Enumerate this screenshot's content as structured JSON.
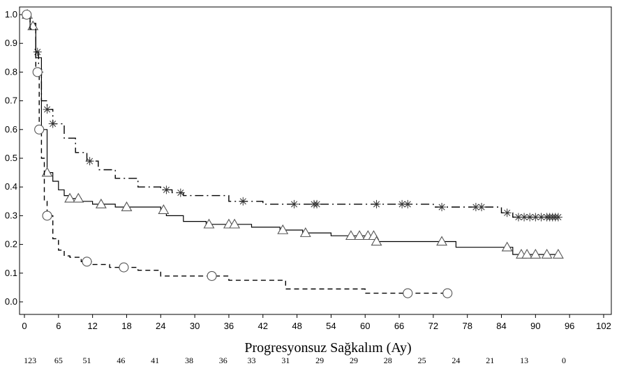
{
  "chart_data": {
    "type": "line",
    "subtype": "kaplan-meier-step",
    "title": "",
    "xlabel": "Progresyonsuz Sağkalım (Ay)",
    "ylabel": "",
    "xlim": [
      0,
      102
    ],
    "ylim": [
      0,
      1.0
    ],
    "x_ticks": [
      0,
      6,
      12,
      18,
      24,
      30,
      36,
      42,
      48,
      54,
      60,
      66,
      72,
      78,
      84,
      90,
      96,
      102
    ],
    "y_ticks": [
      "0.0",
      "0.1",
      "0.2",
      "0.3",
      "0.4",
      "0.5",
      "0.6",
      "0.7",
      "0.8",
      "0.9",
      "1.0"
    ],
    "grid": false,
    "legend": "none",
    "risk_table": {
      "x": [
        1,
        6,
        11,
        17,
        23,
        29,
        35,
        40,
        46,
        52,
        58,
        64,
        70,
        76,
        82,
        88,
        95
      ],
      "counts": [
        "123",
        "65",
        "51",
        "46",
        "41",
        "38",
        "36",
        "33",
        "31",
        "29",
        "29",
        "28",
        "25",
        "24",
        "21",
        "13",
        "0"
      ]
    },
    "series": [
      {
        "line_style": "dash-dot",
        "marker": "star",
        "color": "#000000",
        "x": [
          0,
          1,
          2,
          2.5,
          3,
          4,
          5,
          7,
          9,
          11,
          13,
          16,
          20,
          24,
          26,
          28,
          36,
          38,
          42,
          48,
          55,
          62,
          66,
          68,
          72,
          78,
          84,
          86,
          94
        ],
        "y": [
          1.0,
          0.97,
          0.87,
          0.8,
          0.7,
          0.67,
          0.62,
          0.57,
          0.52,
          0.49,
          0.46,
          0.43,
          0.4,
          0.39,
          0.38,
          0.37,
          0.35,
          0.35,
          0.34,
          0.34,
          0.34,
          0.34,
          0.34,
          0.34,
          0.33,
          0.33,
          0.31,
          0.295,
          0.295
        ],
        "censored_x": [
          2.3,
          2.6,
          4,
          5,
          11.5,
          25,
          27.5,
          38.5,
          47.5,
          51,
          51.5,
          62,
          66.5,
          67.5,
          73.5,
          79.5,
          80.5,
          85,
          87,
          88,
          89,
          90,
          91,
          92,
          92.5,
          93,
          93.5,
          94
        ]
      },
      {
        "line_style": "solid",
        "marker": "triangle",
        "color": "#000000",
        "x": [
          0,
          1,
          2,
          3,
          4,
          5,
          6,
          7,
          8,
          10,
          12,
          14,
          16,
          20,
          24,
          25,
          28,
          32,
          40,
          45,
          49,
          54,
          60,
          62,
          66,
          72,
          76,
          84,
          86,
          94
        ],
        "y": [
          1.0,
          0.96,
          0.85,
          0.6,
          0.45,
          0.42,
          0.39,
          0.37,
          0.36,
          0.35,
          0.34,
          0.34,
          0.33,
          0.33,
          0.32,
          0.3,
          0.28,
          0.27,
          0.26,
          0.25,
          0.24,
          0.23,
          0.23,
          0.21,
          0.21,
          0.21,
          0.19,
          0.19,
          0.165,
          0.165
        ],
        "censored_x": [
          0.5,
          1.5,
          4,
          8,
          9.5,
          13.5,
          18,
          24.5,
          32.5,
          36,
          37,
          45.5,
          49.5,
          57.5,
          59,
          60.5,
          61.5,
          62,
          73.5,
          85,
          87.5,
          88.5,
          90,
          92,
          94
        ]
      },
      {
        "line_style": "dashed",
        "marker": "circle",
        "color": "#000000",
        "x": [
          0,
          1,
          2,
          2.6,
          3,
          3.5,
          4,
          5,
          6,
          7,
          8,
          10,
          12,
          15,
          20,
          24,
          26,
          32,
          36,
          46,
          60,
          62,
          75
        ],
        "y": [
          1.0,
          0.95,
          0.8,
          0.6,
          0.5,
          0.35,
          0.3,
          0.22,
          0.18,
          0.16,
          0.155,
          0.14,
          0.13,
          0.12,
          0.11,
          0.09,
          0.09,
          0.09,
          0.075,
          0.045,
          0.03,
          0.03,
          0.03
        ],
        "censored_x": [
          0.4,
          2.3,
          2.6,
          4,
          11,
          17.5,
          33,
          67.5,
          74.5
        ]
      }
    ]
  }
}
